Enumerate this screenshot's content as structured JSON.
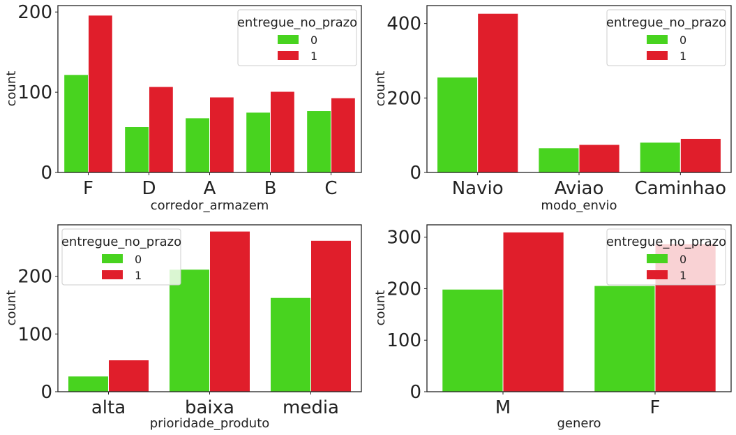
{
  "colors": {
    "0": "#48d31f",
    "1": "#e01e2b"
  },
  "chart_data": [
    {
      "type": "bar",
      "xlabel": "corredor_armazem",
      "ylabel": "count",
      "categories": [
        "F",
        "D",
        "A",
        "B",
        "C"
      ],
      "ylim": [
        0,
        208
      ],
      "yticks": [
        0,
        100,
        200
      ],
      "legend": {
        "title": "entregue_no_prazo",
        "placement": "top-right"
      },
      "series": [
        {
          "name": "0",
          "values": [
            122,
            57,
            68,
            75,
            77
          ]
        },
        {
          "name": "1",
          "values": [
            196,
            107,
            94,
            101,
            93
          ]
        }
      ]
    },
    {
      "type": "bar",
      "xlabel": "modo_envio",
      "ylabel": "count",
      "categories": [
        "Navio",
        "Aviao",
        "Caminhao"
      ],
      "ylim": [
        0,
        448
      ],
      "yticks": [
        0,
        200,
        400
      ],
      "legend": {
        "title": "entregue_no_prazo",
        "placement": "top-right"
      },
      "series": [
        {
          "name": "0",
          "values": [
            256,
            66,
            81
          ]
        },
        {
          "name": "1",
          "values": [
            427,
            75,
            91
          ]
        }
      ]
    },
    {
      "type": "bar",
      "xlabel": "prioridade_produto",
      "ylabel": "count",
      "categories": [
        "alta",
        "baixa",
        "media"
      ],
      "ylim": [
        0,
        289
      ],
      "yticks": [
        0,
        100,
        200
      ],
      "legend": {
        "title": "entregue_no_prazo",
        "placement": "top-left"
      },
      "series": [
        {
          "name": "0",
          "values": [
            27,
            212,
            163
          ]
        },
        {
          "name": "1",
          "values": [
            55,
            278,
            262
          ]
        }
      ]
    },
    {
      "type": "bar",
      "xlabel": "genero",
      "ylabel": "count",
      "categories": [
        "M",
        "F"
      ],
      "ylim": [
        0,
        324
      ],
      "yticks": [
        0,
        100,
        200,
        300
      ],
      "legend": {
        "title": "entregue_no_prazo",
        "placement": "top-right"
      },
      "series": [
        {
          "name": "0",
          "values": [
            199,
            206
          ]
        },
        {
          "name": "1",
          "values": [
            310,
            287
          ]
        }
      ]
    }
  ]
}
